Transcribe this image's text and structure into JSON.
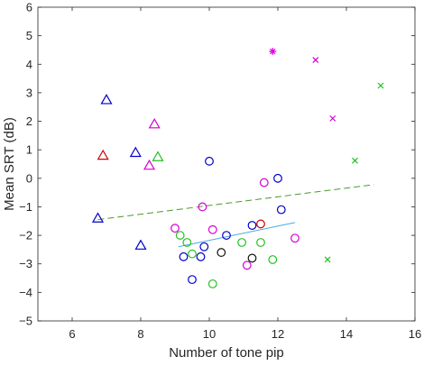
{
  "chart_data": {
    "type": "scatter",
    "xlabel": "Number of tone pip",
    "ylabel": "Mean SRT (dB)",
    "xlim": [
      5,
      16
    ],
    "ylim": [
      -5,
      6
    ],
    "xticks": [
      6,
      8,
      10,
      12,
      14,
      16
    ],
    "yticks": [
      -5,
      -4,
      -3,
      -2,
      -1,
      0,
      1,
      2,
      3,
      4,
      5,
      6
    ],
    "grid": false,
    "legend": "none",
    "series": [
      {
        "marker": "triangle",
        "color": "#0000c8",
        "points": [
          [
            6.75,
            -1.4
          ],
          [
            7.0,
            2.75
          ],
          [
            7.85,
            0.9
          ],
          [
            8.0,
            -2.35
          ]
        ]
      },
      {
        "marker": "triangle",
        "color": "#cc0000",
        "points": [
          [
            6.9,
            0.8
          ]
        ]
      },
      {
        "marker": "triangle",
        "color": "#d400d4",
        "points": [
          [
            8.25,
            0.45
          ],
          [
            8.4,
            1.9
          ]
        ]
      },
      {
        "marker": "triangle",
        "color": "#22c022",
        "points": [
          [
            8.5,
            0.75
          ]
        ]
      },
      {
        "marker": "circle",
        "color": "#0000c8",
        "points": [
          [
            9.25,
            -2.75
          ],
          [
            9.5,
            -3.55
          ],
          [
            9.75,
            -2.75
          ],
          [
            9.85,
            -2.4
          ],
          [
            10.0,
            0.6
          ],
          [
            10.5,
            -2.0
          ],
          [
            11.25,
            -1.65
          ],
          [
            12.0,
            0.0
          ],
          [
            12.1,
            -1.1
          ]
        ]
      },
      {
        "marker": "circle",
        "color": "#d400d4",
        "points": [
          [
            9.0,
            -1.75
          ],
          [
            9.8,
            -1.0
          ],
          [
            10.1,
            -1.8
          ],
          [
            11.1,
            -3.05
          ],
          [
            11.6,
            -0.15
          ],
          [
            12.5,
            -2.1
          ]
        ]
      },
      {
        "marker": "circle",
        "color": "#22c022",
        "points": [
          [
            9.15,
            -2.0
          ],
          [
            9.35,
            -2.25
          ],
          [
            9.5,
            -2.65
          ],
          [
            10.1,
            -3.7
          ],
          [
            10.95,
            -2.25
          ],
          [
            11.5,
            -2.25
          ],
          [
            11.85,
            -2.85
          ]
        ]
      },
      {
        "marker": "circle",
        "color": "#cc0000",
        "points": [
          [
            11.5,
            -1.6
          ]
        ]
      },
      {
        "marker": "circle",
        "color": "#111111",
        "points": [
          [
            10.35,
            -2.6
          ],
          [
            11.25,
            -2.8
          ]
        ]
      },
      {
        "marker": "cross",
        "color": "#d400d4",
        "points": [
          [
            13.1,
            4.15
          ],
          [
            13.6,
            2.1
          ]
        ]
      },
      {
        "marker": "cross",
        "color": "#22c022",
        "points": [
          [
            14.25,
            0.62
          ],
          [
            13.45,
            -2.85
          ],
          [
            15.0,
            3.25
          ]
        ]
      },
      {
        "marker": "star",
        "color": "#e000e0",
        "points": [
          [
            11.85,
            4.45
          ]
        ]
      }
    ],
    "fit_lines": [
      {
        "style": "dashed",
        "color": "#4a9a2a",
        "from": [
          6.75,
          -1.45
        ],
        "to": [
          14.8,
          -0.22
        ]
      },
      {
        "style": "solid",
        "color": "#4aa8e8",
        "from": [
          9.1,
          -2.4
        ],
        "to": [
          12.5,
          -1.55
        ]
      }
    ]
  }
}
